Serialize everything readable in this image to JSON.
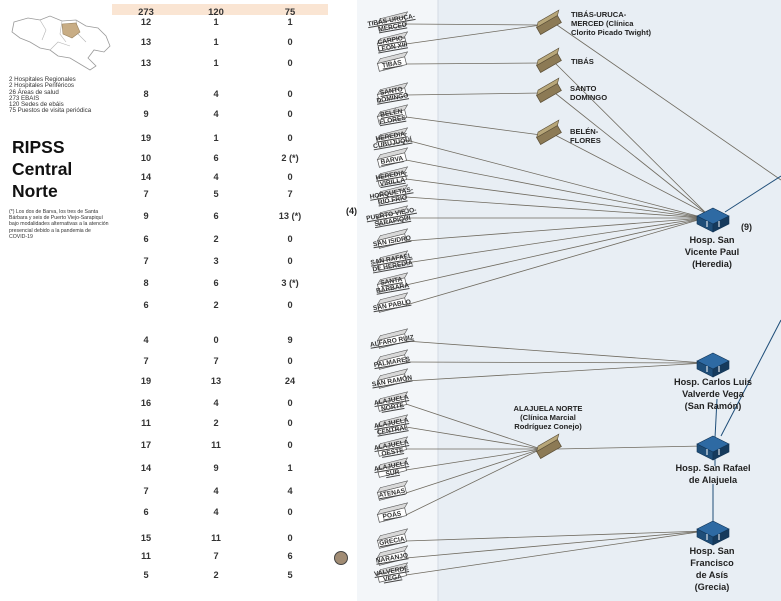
{
  "region": {
    "title_lines": [
      "RIPSS",
      "Central",
      "Norte"
    ]
  },
  "summary": [
    "2 Hospitales Regionales",
    "2 Hospitales Periféricos",
    "26 Áreas de salud",
    "273 EBAIS",
    "120 Sedes de ebáis",
    "75 Puestos de visita periódica"
  ],
  "footnote": "(*) Los dos de Barva, los tres de Santa Bárbara y seis de Puerto Viejo-Sarapiquí bajo modalidades alternativas a la atención presencial debido a la pandemia de COVID-19",
  "totals": {
    "ebais": "273",
    "sedes": "120",
    "puestos": "75"
  },
  "rows": [
    {
      "ebais": "12",
      "sedes": "1",
      "puestos": "1"
    },
    {
      "ebais": "13",
      "sedes": "1",
      "puestos": "0"
    },
    {
      "ebais": "13",
      "sedes": "1",
      "puestos": "0"
    },
    {
      "ebais": "8",
      "sedes": "4",
      "puestos": "0"
    },
    {
      "ebais": "9",
      "sedes": "4",
      "puestos": "0"
    },
    {
      "ebais": "19",
      "sedes": "1",
      "puestos": "0"
    },
    {
      "ebais": "10",
      "sedes": "6",
      "puestos": "2 (*)"
    },
    {
      "ebais": "14",
      "sedes": "4",
      "puestos": "0"
    },
    {
      "ebais": "7",
      "sedes": "5",
      "puestos": "7"
    },
    {
      "ebais": "9",
      "sedes": "6",
      "puestos": "13 (*)"
    },
    {
      "ebais": "6",
      "sedes": "2",
      "puestos": "0"
    },
    {
      "ebais": "7",
      "sedes": "3",
      "puestos": "0"
    },
    {
      "ebais": "8",
      "sedes": "6",
      "puestos": "3 (*)"
    },
    {
      "ebais": "6",
      "sedes": "2",
      "puestos": "0"
    },
    {
      "ebais": "4",
      "sedes": "0",
      "puestos": "9"
    },
    {
      "ebais": "7",
      "sedes": "7",
      "puestos": "0"
    },
    {
      "ebais": "19",
      "sedes": "13",
      "puestos": "24"
    },
    {
      "ebais": "16",
      "sedes": "4",
      "puestos": "0"
    },
    {
      "ebais": "11",
      "sedes": "2",
      "puestos": "0"
    },
    {
      "ebais": "17",
      "sedes": "11",
      "puestos": "0"
    },
    {
      "ebais": "14",
      "sedes": "9",
      "puestos": "1"
    },
    {
      "ebais": "7",
      "sedes": "4",
      "puestos": "4"
    },
    {
      "ebais": "6",
      "sedes": "4",
      "puestos": "0"
    },
    {
      "ebais": "15",
      "sedes": "11",
      "puestos": "0"
    },
    {
      "ebais": "11",
      "sedes": "7",
      "puestos": "6"
    },
    {
      "ebais": "5",
      "sedes": "2",
      "puestos": "5"
    }
  ],
  "cantons": [
    {
      "lines": [
        "TIBÁS-URUCA-",
        "MERCED"
      ]
    },
    {
      "lines": [
        "CARPIO-",
        "LEÓN XIII"
      ]
    },
    {
      "lines": [
        "TIBÁS"
      ]
    },
    {
      "lines": [
        "SANTO",
        "DOMINGO"
      ]
    },
    {
      "lines": [
        "BELÉN",
        "FLORES"
      ]
    },
    {
      "lines": [
        "HEREDIA-",
        "CUBUJUQUÍ"
      ]
    },
    {
      "lines": [
        "BARVA"
      ]
    },
    {
      "lines": [
        "HEREDIA-",
        "VIRILLA"
      ]
    },
    {
      "lines": [
        "HORQUETAS-",
        "RÍO FRÍO"
      ]
    },
    {
      "lines": [
        "PUERTO VIEJO-",
        "SARAPIQUÍ"
      ]
    },
    {
      "lines": [
        "SAN ISIDRO"
      ]
    },
    {
      "lines": [
        "SAN RAFAEL",
        "DE HEREDIA"
      ]
    },
    {
      "lines": [
        "SANTA",
        "BÁRBARA"
      ]
    },
    {
      "lines": [
        "SAN PABLO"
      ]
    },
    {
      "lines": [
        "ALFARO RUIZ"
      ]
    },
    {
      "lines": [
        "PALMARES"
      ]
    },
    {
      "lines": [
        "SAN RAMÓN"
      ]
    },
    {
      "lines": [
        "ALAJUELA",
        "NORTE"
      ]
    },
    {
      "lines": [
        "ALAJUELA",
        "CENTRAL"
      ]
    },
    {
      "lines": [
        "ALAJUELA",
        "OESTE"
      ]
    },
    {
      "lines": [
        "ALAJUELA",
        "SUR"
      ]
    },
    {
      "lines": [
        "ATENAS"
      ]
    },
    {
      "lines": [
        "POÁS"
      ]
    },
    {
      "lines": [
        "GRECIA"
      ]
    },
    {
      "lines": [
        "NARANJO"
      ]
    },
    {
      "lines": [
        "VALVERDE",
        "VEGA"
      ]
    }
  ],
  "areas": [
    {
      "lines": [
        "TIBÁS-URUCA-",
        "MERCED (Clínica",
        "Clorito Picado Twight)"
      ]
    },
    {
      "lines": [
        "TIBÁS"
      ]
    },
    {
      "lines": [
        "SANTO",
        "DOMINGO"
      ]
    },
    {
      "lines": [
        "BELÉN-",
        "FLORES"
      ]
    },
    {
      "lines": [
        "ALAJUELA NORTE",
        "(Clínica Marcial",
        "Rodríguez Conejo)"
      ]
    }
  ],
  "hospitals": [
    {
      "lines": [
        "Hosp. San",
        "Vicente Paul",
        "(Heredia)"
      ]
    },
    {
      "lines": [
        "Hosp. Carlos Luis",
        "Valverde Vega",
        "(San Ramón)"
      ]
    },
    {
      "lines": [
        "Hosp. San Rafael",
        "de Alajuela"
      ]
    },
    {
      "lines": [
        "Hosp. San",
        "Francisco",
        "de Asís",
        "(Grecia)"
      ]
    }
  ],
  "marks": {
    "left": "(4)",
    "right": "(9)"
  },
  "colors": {
    "panel": "#e8eef4",
    "header_band": "#fae5d3",
    "hospital": "#1f4e79",
    "area_box": "#8c7a55",
    "line": "#6f6a5f"
  }
}
